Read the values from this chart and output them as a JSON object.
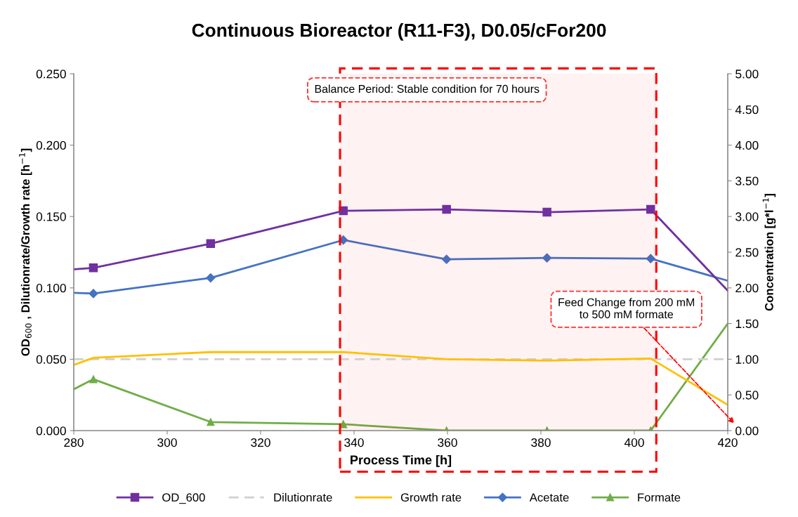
{
  "chart_data": {
    "type": "line",
    "title": "Continuous Bioreactor (R11-F3), D0.05/cFor200",
    "xlabel": "Process Time [h]",
    "ylabel": "OD$_{600}$ , Dilutionrate/Growth rate [h$^{−1}$]",
    "y2label": "Concentration [g*l$^{−1}$]",
    "x": [
      280,
      284.2,
      309.3,
      337.7,
      359.8,
      381.3,
      403.5,
      420
    ],
    "series": [
      {
        "name": "OD_600",
        "color": "#7030a0",
        "marker": "square",
        "line_style": "solid",
        "values": [
          0.113,
          0.114,
          0.131,
          0.154,
          0.155,
          0.153,
          0.155,
          0.098
        ]
      },
      {
        "name": "Dilutionrate",
        "color": "#d0d0d0",
        "marker": "none",
        "line_style": "dashed",
        "x": [
          280,
          420
        ],
        "values": [
          0.05,
          0.05
        ]
      },
      {
        "name": "Growth rate",
        "color": "#ffc000",
        "marker": "none",
        "line_style": "solid",
        "values": [
          0.046,
          0.051,
          0.055,
          0.055,
          0.05,
          0.049,
          0.0505,
          0.018
        ]
      },
      {
        "name": "Acetate",
        "color": "#4472c4",
        "marker": "diamond",
        "line_style": "solid",
        "axis": "y2",
        "values": [
          1.93,
          1.92,
          2.14,
          2.67,
          2.4,
          2.42,
          2.41,
          2.1
        ]
      },
      {
        "name": "Formate",
        "color": "#70ad47",
        "marker": "triangle",
        "line_style": "solid",
        "axis": "y2",
        "values": [
          0.58,
          0.72,
          0.12,
          0.09,
          0.0,
          0.0,
          0.0,
          1.5
        ]
      }
    ],
    "xlim": [
      280,
      420
    ],
    "xticks": [
      280,
      300,
      320,
      340,
      360,
      380,
      400,
      420
    ],
    "ylim": [
      0,
      0.25
    ],
    "yticks": [
      {
        "value": 0,
        "label": "0.000"
      },
      {
        "value": 0.05,
        "label": "0.050"
      },
      {
        "value": 0.1,
        "label": "0.100"
      },
      {
        "value": 0.15,
        "label": "0.150"
      },
      {
        "value": 0.2,
        "label": "0.200"
      },
      {
        "value": 0.25,
        "label": "0.250"
      }
    ],
    "y2lim": [
      0,
      5
    ],
    "y2ticks": [
      {
        "value": 0,
        "label": "0.00"
      },
      {
        "value": 0.5,
        "label": "0.50"
      },
      {
        "value": 1,
        "label": "1.00"
      },
      {
        "value": 1.5,
        "label": "1.50"
      },
      {
        "value": 2,
        "label": "2.00"
      },
      {
        "value": 2.5,
        "label": "2.50"
      },
      {
        "value": 3,
        "label": "3.00"
      },
      {
        "value": 3.5,
        "label": "3.50"
      },
      {
        "value": 4,
        "label": "4.00"
      },
      {
        "value": 4.5,
        "label": "4.50"
      },
      {
        "value": 5,
        "label": "5.00"
      }
    ],
    "bands": [
      {
        "axis": "x",
        "from": 337,
        "to": 404.7,
        "color": "#ff0000"
      }
    ],
    "annotations": [
      "Balance Period: Stable condition for 70 hours",
      "Feed Change from 200 mM\nto 500 mM formate"
    ],
    "grid": false,
    "legend": "bottom"
  }
}
